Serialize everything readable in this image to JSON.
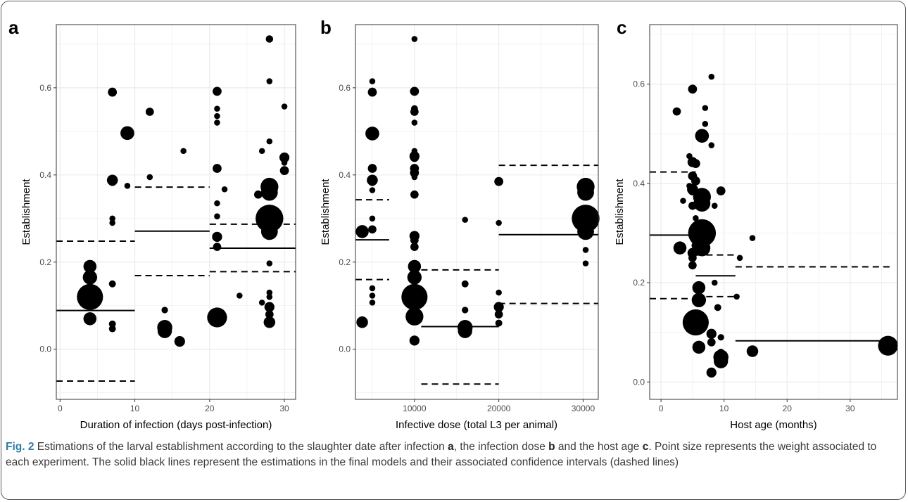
{
  "caption": {
    "fig_label": "Fig. 2",
    "part1": " Estimations of the larval establishment according to the slaughter date after infection ",
    "ref_a": "a",
    "part2": ", the infection dose ",
    "ref_b": "b",
    "part3": " and the host age ",
    "ref_c": "c",
    "part4": ". Point size represents the weight associated to each experiment. The solid black lines represent the estimations in the final models and their associated confidence intervals (dashed lines)"
  },
  "chart_data": [
    {
      "panel": "a",
      "type": "scatter",
      "xlabel": "Duration of infection (days post-infection)",
      "ylabel": "Establishment",
      "xlim": [
        -0.5,
        31.5
      ],
      "ylim": [
        -0.115,
        0.745
      ],
      "xticks": [
        0,
        10,
        20,
        30
      ],
      "yticks": [
        0.0,
        0.2,
        0.4,
        0.6
      ],
      "ytick_labels": [
        "0.0",
        "0.2",
        "0.4",
        "0.6"
      ],
      "grid": true,
      "point_size_meaning": "weight",
      "points": [
        {
          "x": 4,
          "y": 0.12,
          "w": 0.9
        },
        {
          "x": 4,
          "y": 0.19,
          "w": 0.25
        },
        {
          "x": 4,
          "y": 0.165,
          "w": 0.3
        },
        {
          "x": 4,
          "y": 0.07,
          "w": 0.25
        },
        {
          "x": 7,
          "y": 0.59,
          "w": 0.12
        },
        {
          "x": 7,
          "y": 0.388,
          "w": 0.18
        },
        {
          "x": 7,
          "y": 0.385,
          "w": 0.12
        },
        {
          "x": 7,
          "y": 0.3,
          "w": 0.05
        },
        {
          "x": 7,
          "y": 0.29,
          "w": 0.05
        },
        {
          "x": 7,
          "y": 0.15,
          "w": 0.07
        },
        {
          "x": 7,
          "y": 0.058,
          "w": 0.07
        },
        {
          "x": 7,
          "y": 0.047,
          "w": 0.07
        },
        {
          "x": 9,
          "y": 0.496,
          "w": 0.28
        },
        {
          "x": 9,
          "y": 0.375,
          "w": 0.05
        },
        {
          "x": 12,
          "y": 0.545,
          "w": 0.1
        },
        {
          "x": 12,
          "y": 0.395,
          "w": 0.05
        },
        {
          "x": 14,
          "y": 0.05,
          "w": 0.33
        },
        {
          "x": 14,
          "y": 0.042,
          "w": 0.3
        },
        {
          "x": 14,
          "y": 0.09,
          "w": 0.06
        },
        {
          "x": 16,
          "y": 0.018,
          "w": 0.17
        },
        {
          "x": 16.5,
          "y": 0.455,
          "w": 0.05
        },
        {
          "x": 21,
          "y": 0.073,
          "w": 0.55
        },
        {
          "x": 21,
          "y": 0.592,
          "w": 0.12
        },
        {
          "x": 21,
          "y": 0.552,
          "w": 0.05
        },
        {
          "x": 21,
          "y": 0.535,
          "w": 0.05
        },
        {
          "x": 21,
          "y": 0.52,
          "w": 0.05
        },
        {
          "x": 21,
          "y": 0.415,
          "w": 0.12
        },
        {
          "x": 21,
          "y": 0.335,
          "w": 0.05
        },
        {
          "x": 21,
          "y": 0.305,
          "w": 0.05
        },
        {
          "x": 21,
          "y": 0.258,
          "w": 0.15
        },
        {
          "x": 21,
          "y": 0.235,
          "w": 0.1
        },
        {
          "x": 22,
          "y": 0.367,
          "w": 0.05
        },
        {
          "x": 24,
          "y": 0.123,
          "w": 0.05
        },
        {
          "x": 28,
          "y": 0.3,
          "w": 1.0
        },
        {
          "x": 28,
          "y": 0.373,
          "w": 0.45
        },
        {
          "x": 28,
          "y": 0.36,
          "w": 0.4
        },
        {
          "x": 28,
          "y": 0.27,
          "w": 0.4
        },
        {
          "x": 28,
          "y": 0.712,
          "w": 0.08
        },
        {
          "x": 28,
          "y": 0.615,
          "w": 0.05
        },
        {
          "x": 28,
          "y": 0.477,
          "w": 0.05
        },
        {
          "x": 28,
          "y": 0.197,
          "w": 0.05
        },
        {
          "x": 28,
          "y": 0.13,
          "w": 0.05
        },
        {
          "x": 28,
          "y": 0.12,
          "w": 0.05
        },
        {
          "x": 28,
          "y": 0.097,
          "w": 0.15
        },
        {
          "x": 28,
          "y": 0.08,
          "w": 0.1
        },
        {
          "x": 28,
          "y": 0.062,
          "w": 0.2
        },
        {
          "x": 27,
          "y": 0.455,
          "w": 0.05
        },
        {
          "x": 27,
          "y": 0.107,
          "w": 0.05
        },
        {
          "x": 26.5,
          "y": 0.355,
          "w": 0.1
        },
        {
          "x": 30,
          "y": 0.44,
          "w": 0.15
        },
        {
          "x": 30,
          "y": 0.41,
          "w": 0.12
        },
        {
          "x": 30,
          "y": 0.557,
          "w": 0.05
        },
        {
          "x": 30,
          "y": 0.428,
          "w": 0.05
        }
      ],
      "segments": [
        {
          "x0": -0.5,
          "x1": 10,
          "estimate": 0.089,
          "lower": -0.073,
          "upper": 0.248
        },
        {
          "x0": 10,
          "x1": 20,
          "estimate": 0.271,
          "lower": 0.169,
          "upper": 0.372
        },
        {
          "x0": 20,
          "x1": 31.5,
          "estimate": 0.232,
          "lower": 0.178,
          "upper": 0.287
        }
      ]
    },
    {
      "panel": "b",
      "type": "scatter",
      "xlabel": "Infective dose (total L3 per animal)",
      "ylabel": "Establishment",
      "xlim": [
        3000,
        31800
      ],
      "ylim": [
        -0.115,
        0.745
      ],
      "xticks": [
        10000,
        20000,
        30000
      ],
      "yticks": [
        0.0,
        0.2,
        0.4,
        0.6
      ],
      "ytick_labels": [
        "0.0",
        "0.2",
        "0.4",
        "0.6"
      ],
      "grid": true,
      "point_size_meaning": "weight",
      "points": [
        {
          "x": 10000,
          "y": 0.12,
          "w": 0.9
        },
        {
          "x": 10000,
          "y": 0.19,
          "w": 0.25
        },
        {
          "x": 10000,
          "y": 0.165,
          "w": 0.3
        },
        {
          "x": 10000,
          "y": 0.075,
          "w": 0.45
        },
        {
          "x": 10000,
          "y": 0.02,
          "w": 0.15
        },
        {
          "x": 10000,
          "y": 0.712,
          "w": 0.05
        },
        {
          "x": 10000,
          "y": 0.592,
          "w": 0.12
        },
        {
          "x": 10000,
          "y": 0.552,
          "w": 0.07
        },
        {
          "x": 10000,
          "y": 0.545,
          "w": 0.1
        },
        {
          "x": 10000,
          "y": 0.52,
          "w": 0.05
        },
        {
          "x": 10000,
          "y": 0.455,
          "w": 0.05
        },
        {
          "x": 10000,
          "y": 0.443,
          "w": 0.15
        },
        {
          "x": 10000,
          "y": 0.44,
          "w": 0.12
        },
        {
          "x": 10000,
          "y": 0.415,
          "w": 0.12
        },
        {
          "x": 10000,
          "y": 0.405,
          "w": 0.12
        },
        {
          "x": 10000,
          "y": 0.395,
          "w": 0.05
        },
        {
          "x": 10000,
          "y": 0.355,
          "w": 0.1
        },
        {
          "x": 10000,
          "y": 0.26,
          "w": 0.15
        },
        {
          "x": 10000,
          "y": 0.25,
          "w": 0.1
        },
        {
          "x": 10000,
          "y": 0.235,
          "w": 0.1
        },
        {
          "x": 5000,
          "y": 0.495,
          "w": 0.28
        },
        {
          "x": 5000,
          "y": 0.59,
          "w": 0.12
        },
        {
          "x": 5000,
          "y": 0.615,
          "w": 0.05
        },
        {
          "x": 5000,
          "y": 0.415,
          "w": 0.12
        },
        {
          "x": 5000,
          "y": 0.388,
          "w": 0.18
        },
        {
          "x": 5000,
          "y": 0.385,
          "w": 0.12
        },
        {
          "x": 5000,
          "y": 0.365,
          "w": 0.05
        },
        {
          "x": 5000,
          "y": 0.3,
          "w": 0.05
        },
        {
          "x": 5000,
          "y": 0.275,
          "w": 0.1
        },
        {
          "x": 5000,
          "y": 0.14,
          "w": 0.05
        },
        {
          "x": 5000,
          "y": 0.123,
          "w": 0.05
        },
        {
          "x": 5000,
          "y": 0.107,
          "w": 0.05
        },
        {
          "x": 3800,
          "y": 0.27,
          "w": 0.25
        },
        {
          "x": 3800,
          "y": 0.062,
          "w": 0.2
        },
        {
          "x": 16000,
          "y": 0.05,
          "w": 0.33
        },
        {
          "x": 16000,
          "y": 0.042,
          "w": 0.3
        },
        {
          "x": 16000,
          "y": 0.09,
          "w": 0.06
        },
        {
          "x": 16000,
          "y": 0.15,
          "w": 0.07
        },
        {
          "x": 16000,
          "y": 0.297,
          "w": 0.05
        },
        {
          "x": 20000,
          "y": 0.385,
          "w": 0.12
        },
        {
          "x": 20000,
          "y": 0.097,
          "w": 0.15
        },
        {
          "x": 20000,
          "y": 0.08,
          "w": 0.1
        },
        {
          "x": 20000,
          "y": 0.06,
          "w": 0.07
        },
        {
          "x": 20000,
          "y": 0.13,
          "w": 0.05
        },
        {
          "x": 20000,
          "y": 0.29,
          "w": 0.05
        },
        {
          "x": 30300,
          "y": 0.3,
          "w": 1.0
        },
        {
          "x": 30300,
          "y": 0.373,
          "w": 0.45
        },
        {
          "x": 30300,
          "y": 0.36,
          "w": 0.4
        },
        {
          "x": 30300,
          "y": 0.27,
          "w": 0.4
        },
        {
          "x": 30300,
          "y": 0.228,
          "w": 0.05
        },
        {
          "x": 30300,
          "y": 0.197,
          "w": 0.05
        }
      ],
      "segments": [
        {
          "x0": 3000,
          "x1": 7000,
          "estimate": 0.251,
          "lower": 0.16,
          "upper": 0.343
        },
        {
          "x0": 10800,
          "x1": 20000,
          "estimate": 0.052,
          "lower": -0.08,
          "upper": 0.182
        },
        {
          "x0": 20000,
          "x1": 31800,
          "estimate": 0.263,
          "lower": 0.105,
          "upper": 0.422
        }
      ]
    },
    {
      "panel": "c",
      "type": "scatter",
      "xlabel": "Host age (months)",
      "ylabel": "Establishment",
      "xlim": [
        -1.8,
        37.5
      ],
      "ylim": [
        -0.035,
        0.72
      ],
      "xticks": [
        0,
        10,
        20,
        30
      ],
      "yticks": [
        0.0,
        0.2,
        0.4,
        0.6
      ],
      "ytick_labels": [
        "0.0",
        "0.2",
        "0.4",
        "0.6"
      ],
      "grid": true,
      "point_size_meaning": "weight",
      "points": [
        {
          "x": 5.5,
          "y": 0.12,
          "w": 0.9
        },
        {
          "x": 6.5,
          "y": 0.3,
          "w": 1.0
        },
        {
          "x": 6.5,
          "y": 0.373,
          "w": 0.45
        },
        {
          "x": 6.5,
          "y": 0.36,
          "w": 0.4
        },
        {
          "x": 6.5,
          "y": 0.27,
          "w": 0.4
        },
        {
          "x": 6.5,
          "y": 0.496,
          "w": 0.28
        },
        {
          "x": 6,
          "y": 0.19,
          "w": 0.25
        },
        {
          "x": 6,
          "y": 0.165,
          "w": 0.3
        },
        {
          "x": 6,
          "y": 0.07,
          "w": 0.25
        },
        {
          "x": 9.5,
          "y": 0.05,
          "w": 0.33
        },
        {
          "x": 9.5,
          "y": 0.042,
          "w": 0.3
        },
        {
          "x": 14.5,
          "y": 0.062,
          "w": 0.2
        },
        {
          "x": 36,
          "y": 0.073,
          "w": 0.55
        },
        {
          "x": 3,
          "y": 0.27,
          "w": 0.25
        },
        {
          "x": 2.5,
          "y": 0.545,
          "w": 0.1
        },
        {
          "x": 5,
          "y": 0.59,
          "w": 0.12
        },
        {
          "x": 5,
          "y": 0.443,
          "w": 0.15
        },
        {
          "x": 5,
          "y": 0.415,
          "w": 0.12
        },
        {
          "x": 5,
          "y": 0.388,
          "w": 0.18
        },
        {
          "x": 5,
          "y": 0.385,
          "w": 0.12
        },
        {
          "x": 5,
          "y": 0.355,
          "w": 0.1
        },
        {
          "x": 5,
          "y": 0.26,
          "w": 0.15
        },
        {
          "x": 5,
          "y": 0.25,
          "w": 0.1
        },
        {
          "x": 5,
          "y": 0.235,
          "w": 0.1
        },
        {
          "x": 5.5,
          "y": 0.44,
          "w": 0.12
        },
        {
          "x": 5.5,
          "y": 0.405,
          "w": 0.12
        },
        {
          "x": 5.5,
          "y": 0.33,
          "w": 0.05
        },
        {
          "x": 5.5,
          "y": 0.3,
          "w": 0.05
        },
        {
          "x": 5.5,
          "y": 0.285,
          "w": 0.05
        },
        {
          "x": 5.5,
          "y": 0.275,
          "w": 0.1
        },
        {
          "x": 8,
          "y": 0.615,
          "w": 0.05
        },
        {
          "x": 8,
          "y": 0.477,
          "w": 0.05
        },
        {
          "x": 8,
          "y": 0.019,
          "w": 0.15
        },
        {
          "x": 8,
          "y": 0.097,
          "w": 0.15
        },
        {
          "x": 8,
          "y": 0.08,
          "w": 0.1
        },
        {
          "x": 9.5,
          "y": 0.385,
          "w": 0.12
        },
        {
          "x": 9.5,
          "y": 0.09,
          "w": 0.06
        },
        {
          "x": 9.5,
          "y": 0.06,
          "w": 0.07
        },
        {
          "x": 9,
          "y": 0.15,
          "w": 0.07
        },
        {
          "x": 8.5,
          "y": 0.355,
          "w": 0.05
        },
        {
          "x": 8.5,
          "y": 0.2,
          "w": 0.05
        },
        {
          "x": 7,
          "y": 0.552,
          "w": 0.05
        },
        {
          "x": 7,
          "y": 0.52,
          "w": 0.05
        },
        {
          "x": 4.5,
          "y": 0.455,
          "w": 0.05
        },
        {
          "x": 4.5,
          "y": 0.395,
          "w": 0.05
        },
        {
          "x": 3.5,
          "y": 0.365,
          "w": 0.05
        },
        {
          "x": 12,
          "y": 0.172,
          "w": 0.05
        },
        {
          "x": 14.5,
          "y": 0.29,
          "w": 0.05
        },
        {
          "x": 12.5,
          "y": 0.25,
          "w": 0.05
        }
      ],
      "segments": [
        {
          "x0": -1.8,
          "x1": 5.5,
          "estimate": 0.296,
          "lower": 0.168,
          "upper": 0.423
        },
        {
          "x0": 5.5,
          "x1": 11.8,
          "estimate": 0.214,
          "lower": 0.172,
          "upper": 0.256
        },
        {
          "x0": 11.8,
          "x1": 36.5,
          "estimate": 0.083,
          "lower": null,
          "upper": 0.232
        }
      ]
    }
  ]
}
